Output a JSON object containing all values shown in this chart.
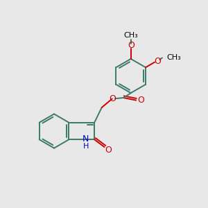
{
  "bg_color": "#e8e8e8",
  "bond_color": "#3a7a6a",
  "bond_width": 1.4,
  "o_color": "#cc0000",
  "n_color": "#0000cc",
  "text_color": "#000000",
  "figsize": [
    3.0,
    3.0
  ],
  "dpi": 100,
  "xlim": [
    0,
    10
  ],
  "ylim": [
    0,
    10
  ]
}
